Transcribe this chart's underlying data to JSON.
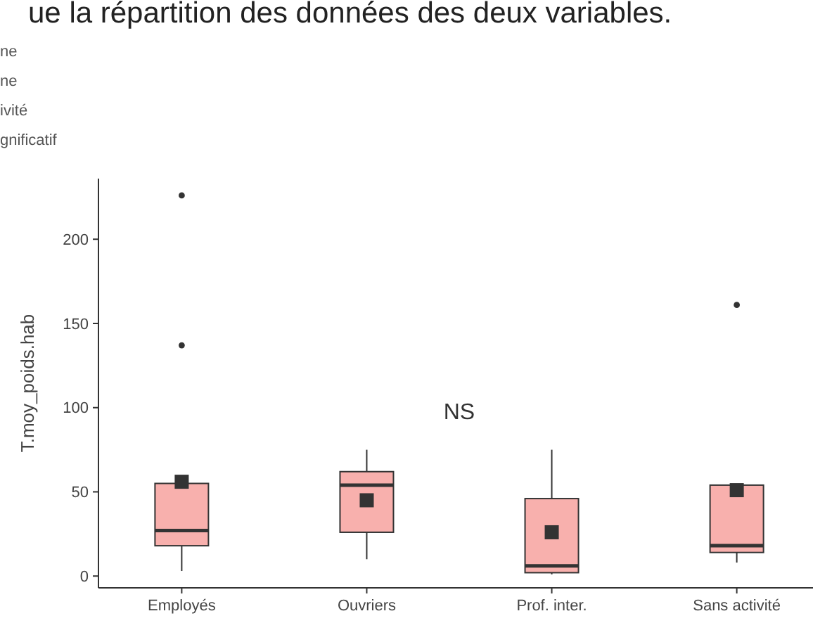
{
  "chart_data": {
    "type": "box",
    "title": "ue la répartition des données des deux variables.",
    "ylabel": "T.moy_poids.hab",
    "categories": [
      "Employés",
      "Ouvriers",
      "Prof. inter.",
      "Sans activité"
    ],
    "boxes": [
      {
        "low": 3,
        "q1": 18,
        "median": 27,
        "q3": 55,
        "high": 55,
        "mean": 56,
        "outliers": [
          137,
          226
        ]
      },
      {
        "low": 10,
        "q1": 26,
        "median": 54,
        "q3": 62,
        "high": 75,
        "mean": 45
      },
      {
        "low": 1,
        "q1": 2,
        "median": 6,
        "q3": 46,
        "high": 75,
        "mean": 26
      },
      {
        "low": 8,
        "q1": 14,
        "median": 18,
        "q3": 54,
        "high": 54,
        "mean": 51,
        "outliers": [
          161
        ]
      }
    ],
    "color": "#f8b0ad",
    "ylim": [
      -7,
      236
    ],
    "yticks": [
      0,
      50,
      100,
      150,
      200
    ],
    "annotations": [
      "ne",
      "ne",
      "ivité",
      "gnificatif",
      "NS"
    ],
    "grid": false
  }
}
